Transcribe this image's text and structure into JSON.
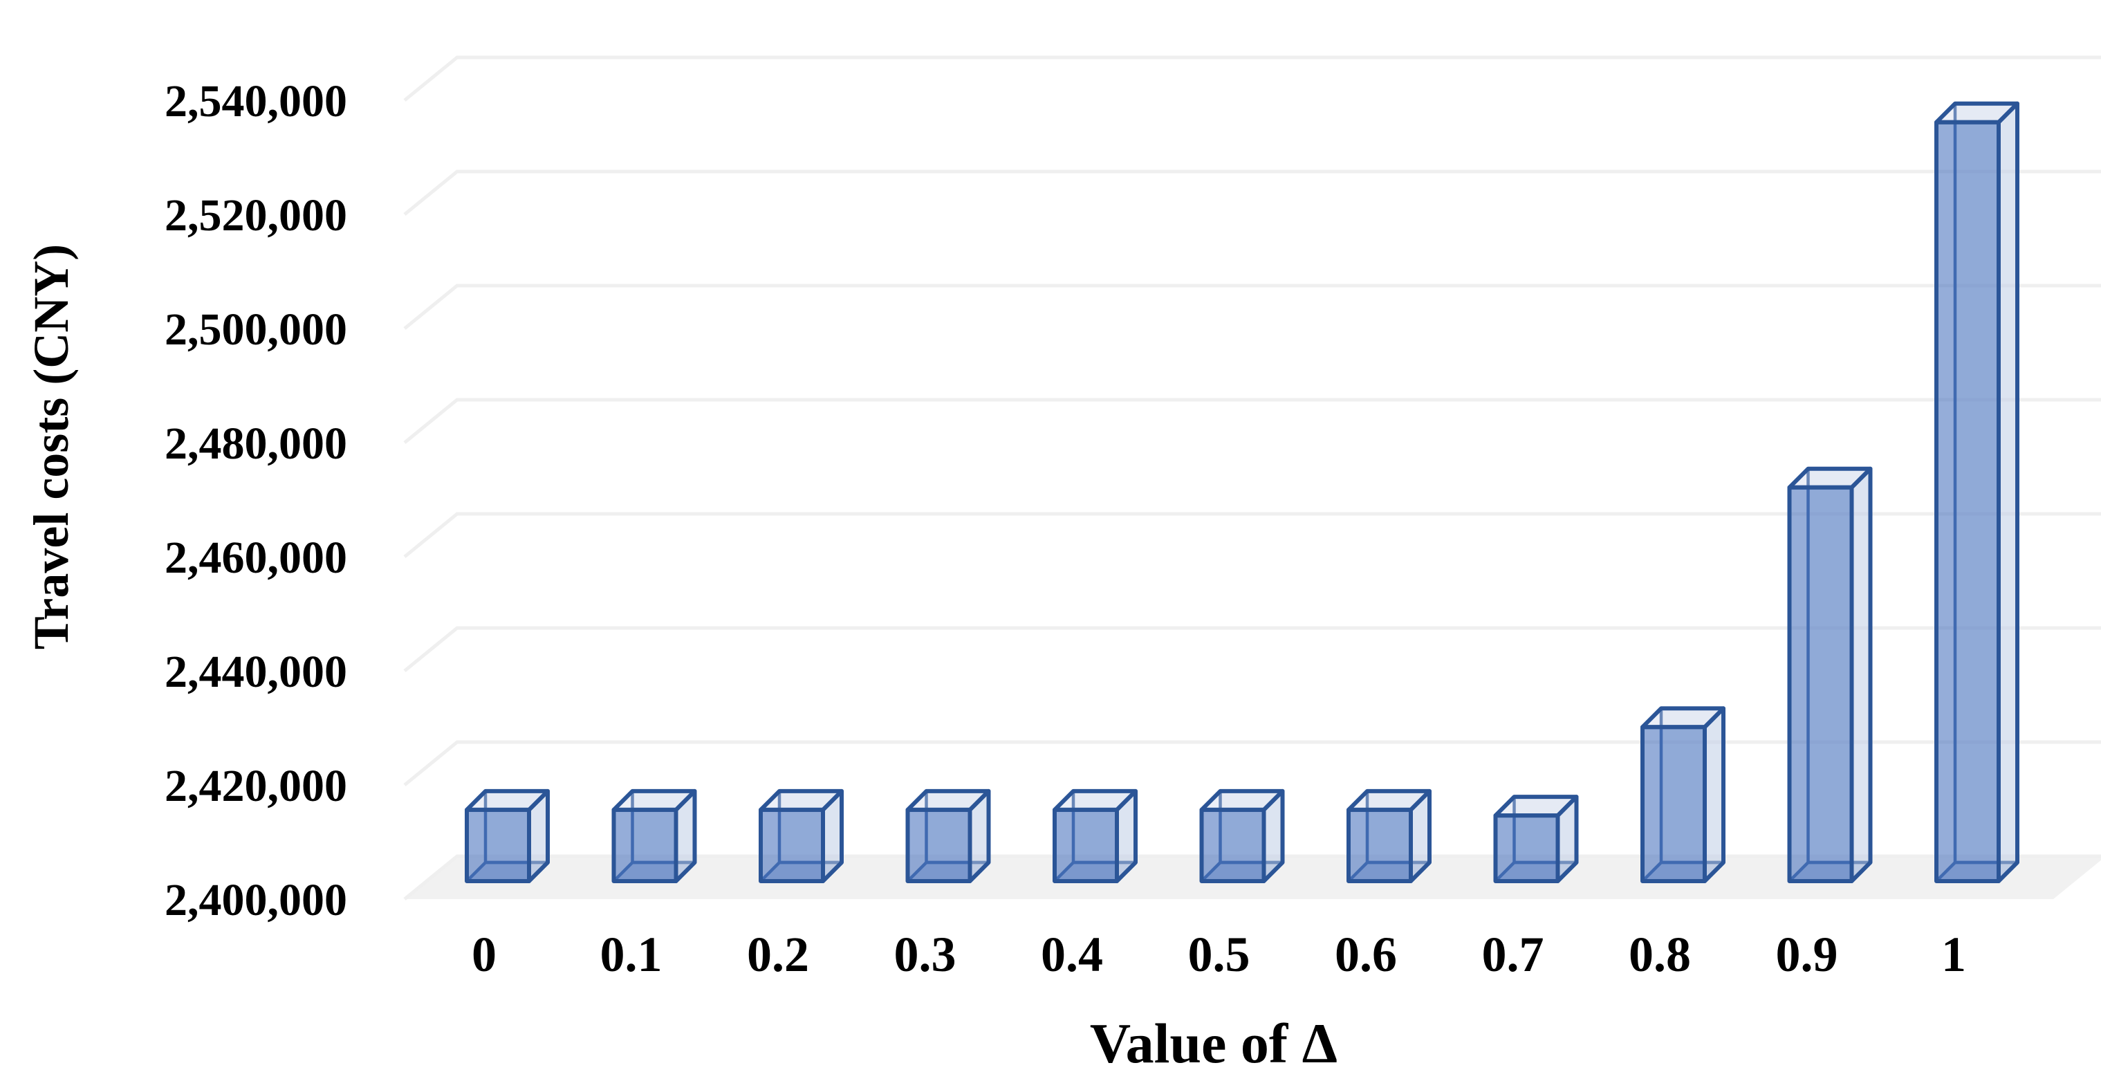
{
  "chart_data": {
    "type": "bar",
    "style": "3d-column",
    "title": "",
    "xlabel": "Value of Δ",
    "ylabel": "Travel costs (CNY)",
    "categories": [
      "0",
      "0.1",
      "0.2",
      "0.3",
      "0.4",
      "0.5",
      "0.6",
      "0.7",
      "0.8",
      "0.9",
      "1"
    ],
    "values": [
      2412500,
      2412500,
      2412500,
      2412500,
      2412500,
      2412500,
      2412500,
      2411500,
      2427000,
      2469000,
      2533000
    ],
    "ylim": [
      2400000,
      2540000
    ],
    "ytick_step": 20000,
    "ytick_labels": [
      "2,400,000",
      "2,420,000",
      "2,440,000",
      "2,460,000",
      "2,480,000",
      "2,500,000",
      "2,520,000",
      "2,540,000"
    ],
    "grid": true,
    "legend": null,
    "colors": {
      "bar_front_fill": "rgba(72,114,189,0.58)",
      "bar_border": "#2B5597",
      "bar_inner_edge": "#36609F",
      "bar_side_fill": "rgba(190,203,228,0.45)",
      "bar_top_fill": "rgba(200,210,232,0.35)",
      "bar_back_fill": "rgba(220,228,242,0.30)",
      "bar_bottom_fill": "rgba(72,114,189,0.28)",
      "gridline": "#EFEFEF",
      "floor": "#F1F1F1",
      "text": "#000000",
      "background": "#FFFFFF"
    }
  }
}
